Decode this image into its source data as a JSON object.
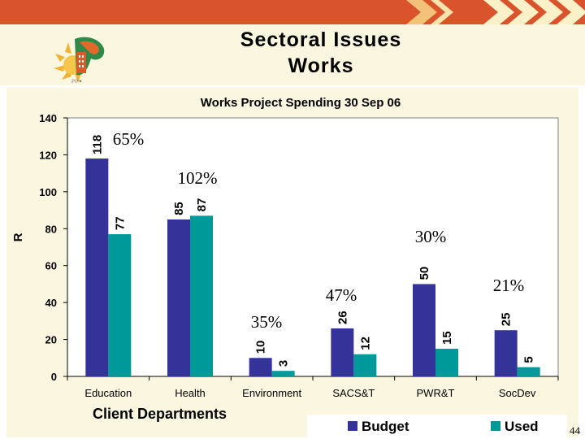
{
  "slide": {
    "title_line1": "Sectoral Issues",
    "title_line2": "Works",
    "page_number": "44"
  },
  "colors": {
    "top_band": "#d9542c",
    "background": "#fbf6df",
    "budget": "#333399",
    "used": "#009999",
    "plot_area": "#ffffff"
  },
  "icons": [
    "logo-sun-emblem",
    "chevron-arrows"
  ],
  "chart_data": {
    "type": "bar",
    "title": "Works Project Spending 30 Sep 06",
    "xlabel": "Client Departments",
    "ylabel": "R",
    "ylim": [
      0,
      140
    ],
    "yticks": [
      0,
      20,
      40,
      60,
      80,
      100,
      120,
      140
    ],
    "grid": false,
    "legend_position": "bottom-right",
    "categories": [
      "Education",
      "Health",
      "Environment",
      "SACS&T",
      "PWR&T",
      "SocDev"
    ],
    "series": [
      {
        "name": "Budget",
        "values": [
          118,
          85,
          10,
          26,
          50,
          25
        ]
      },
      {
        "name": "Used",
        "values": [
          77,
          87,
          3,
          12,
          15,
          5
        ]
      }
    ],
    "annotations": [
      "65%",
      "102%",
      "35%",
      "47%",
      "30%",
      "21%"
    ]
  }
}
